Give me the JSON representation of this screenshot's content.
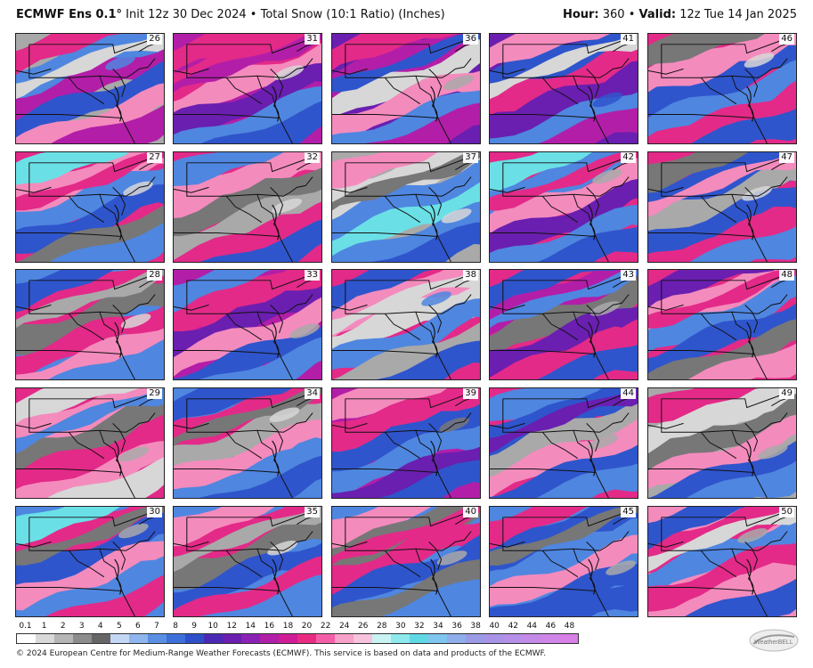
{
  "header": {
    "model": "ECMWF Ens 0.1°",
    "init": "Init 12z 30 Dec 2024",
    "bullet": "•",
    "product": "Total Snow (10:1 Ratio) (Inches)",
    "hour_label": "Hour:",
    "hour_value": "360",
    "valid_label": "Valid:",
    "valid_value": "12z Tue 14 Jan 2025"
  },
  "members": [
    26,
    31,
    36,
    41,
    46,
    27,
    32,
    37,
    42,
    47,
    28,
    33,
    38,
    43,
    48,
    29,
    34,
    39,
    44,
    49,
    30,
    35,
    40,
    45,
    50
  ],
  "member_labels": [
    "26",
    "31",
    "36",
    "41",
    "46",
    "27",
    "32",
    "37",
    "42",
    "47",
    "28",
    "33",
    "38",
    "43",
    "48",
    "29",
    "34",
    "39",
    "44",
    "49",
    "30",
    "35",
    "40",
    "45",
    "50"
  ],
  "legend": {
    "labels": [
      "0.1",
      "1",
      "2",
      "3",
      "4",
      "5",
      "6",
      "7",
      "8",
      "9",
      "10",
      "12",
      "14",
      "16",
      "18",
      "20",
      "22",
      "24",
      "26",
      "28",
      "30",
      "32",
      "34",
      "36",
      "38",
      "40",
      "42",
      "44",
      "46",
      "48"
    ],
    "colors": [
      "#ffffff",
      "#d9d9d9",
      "#b5b5b5",
      "#8c8c8c",
      "#666666",
      "#c4d7f5",
      "#8fb5ee",
      "#5a8fe4",
      "#3c6fd9",
      "#2d4fc9",
      "#4a2ab4",
      "#6a1fb0",
      "#8a22b5",
      "#b020a8",
      "#d01e96",
      "#ea2b84",
      "#f45ea6",
      "#f7a0c8",
      "#f6c2dc",
      "#c9f3f3",
      "#8ee9ec",
      "#5fd8e4",
      "#7fc6ee",
      "#8faeea",
      "#9a9ae6",
      "#a893e6",
      "#b68fe8",
      "#c38ae8",
      "#cf86e8",
      "#d87fe8"
    ]
  },
  "footer": "© 2024 European Centre for Medium-Range Weather Forecasts (ECMWF). This service is based on data and products of the ECMWF.",
  "logo_text": "WeatherBELL"
}
